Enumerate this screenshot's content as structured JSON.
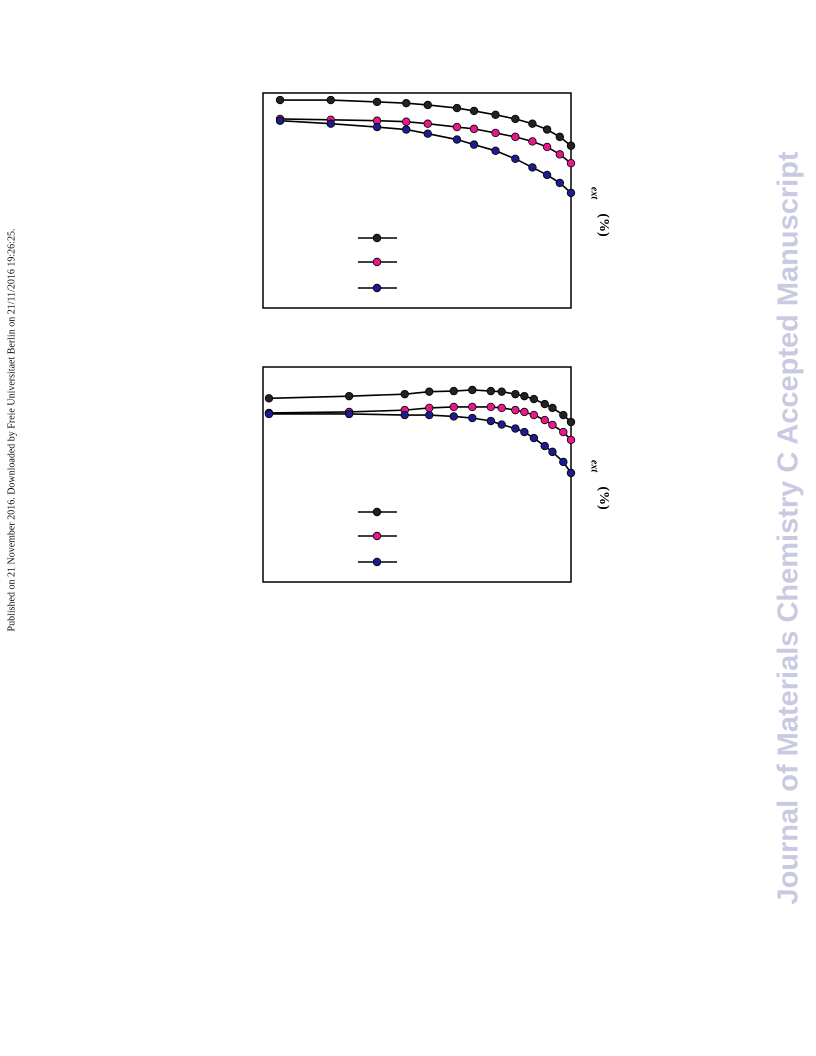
{
  "side_note": "Published on 21 November 2016. Downloaded by Freie Universitaet Berlin on 21/11/2016 19:26:25.",
  "watermark": "Journal of Materials Chemistry C Accepted Manuscript",
  "chart_data": [
    {
      "type": "line",
      "log_x": true,
      "log_y": true,
      "y_label": "(%)",
      "y_label_sub": "ext",
      "xlim": [
        0.2,
        300
      ],
      "ylim": [
        0.07,
        160
      ],
      "x": [
        0.3,
        1,
        3,
        6,
        10,
        20,
        30,
        50,
        80,
        120,
        170,
        230,
        300
      ],
      "series": [
        {
          "color": "#222222",
          "values": [
            124,
            124,
            116,
            111,
            104,
            93,
            84,
            73,
            63,
            53,
            43,
            33,
            24
          ]
        },
        {
          "color": "#e8178c",
          "values": [
            63,
            61,
            59,
            57,
            53,
            47,
            44,
            38,
            33,
            28,
            23,
            17.6,
            12.8
          ]
        },
        {
          "color": "#1c1c8e",
          "values": [
            59,
            53,
            47,
            43,
            37,
            30,
            25,
            20,
            15,
            11,
            8.4,
            6.3,
            4.4
          ]
        }
      ]
    },
    {
      "type": "line",
      "log_x": true,
      "log_y": true,
      "y_label": "(%)",
      "y_label_sub": "ext",
      "xlim": [
        0.04,
        4000
      ],
      "ylim": [
        0.057,
        115
      ],
      "x": [
        0.05,
        1,
        8,
        20,
        50,
        100,
        200,
        300,
        500,
        700,
        1000,
        1500,
        2000,
        3000,
        4000
      ],
      "series": [
        {
          "color": "#222222",
          "values": [
            38,
            41,
            44,
            48,
            49,
            51,
            49,
            48,
            44,
            41,
            37,
            31,
            27,
            21,
            16.4
          ]
        },
        {
          "color": "#e8178c",
          "values": [
            22.6,
            23.4,
            25,
            27,
            28,
            28,
            28,
            27,
            25,
            23.4,
            21,
            17.6,
            14.8,
            11.5,
            8.7
          ]
        },
        {
          "color": "#1c1c8e",
          "values": [
            21.8,
            21.8,
            21,
            21,
            20,
            18.9,
            17,
            15,
            13,
            11.5,
            9.3,
            7,
            5.7,
            4,
            2.7
          ]
        }
      ]
    }
  ]
}
